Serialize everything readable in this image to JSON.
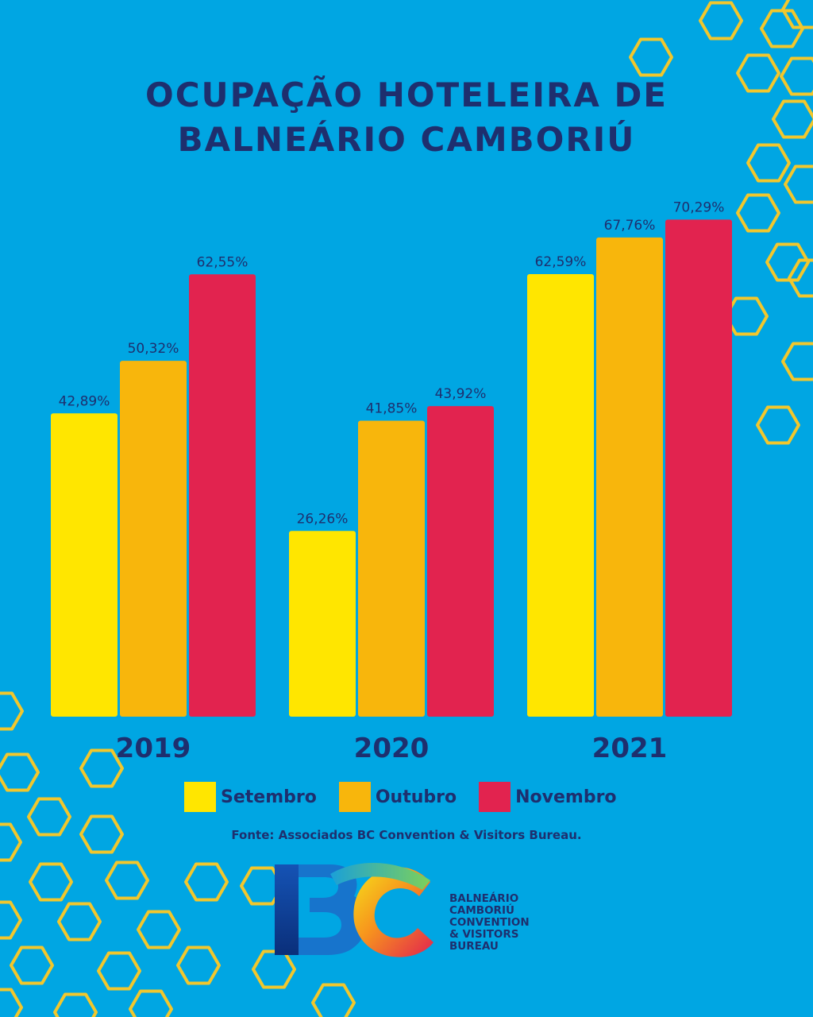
{
  "title": {
    "line1": "OCUPAÇÃO HOTELEIRA DE",
    "line2": "BALNEÁRIO CAMBORIÚ"
  },
  "chart_data": {
    "type": "bar",
    "title": "OCUPAÇÃO HOTELEIRA DE BALNEÁRIO CAMBORIÚ",
    "categories": [
      "2019",
      "2020",
      "2021"
    ],
    "series": [
      {
        "name": "Setembro",
        "values": [
          42.89,
          26.26,
          62.59
        ],
        "labels": [
          "42,89%",
          "26,26%",
          "62,59%"
        ],
        "color": "#ffe600"
      },
      {
        "name": "Outubro",
        "values": [
          50.32,
          41.85,
          67.76
        ],
        "labels": [
          "50,32%",
          "41,85%",
          "67,76%"
        ],
        "color": "#f8b60c"
      },
      {
        "name": "Novembro",
        "values": [
          62.55,
          43.92,
          70.29
        ],
        "labels": [
          "62,55%",
          "43,92%",
          "70,29%"
        ],
        "color": "#e2234f"
      }
    ],
    "ylim": [
      0,
      100
    ],
    "grid": false,
    "legend_position": "bottom"
  },
  "source": "Fonte:  Associados BC Convention & Visitors Bureau.",
  "logo": {
    "mark": "BC",
    "text_lines": [
      "BALNEÁRIO",
      "CAMBORIÚ",
      "CONVENTION",
      "& VISITORS",
      "BUREAU"
    ]
  },
  "colors": {
    "background": "#00a6e3",
    "text": "#1e2f6e",
    "hexagon": "#f2c72c"
  }
}
